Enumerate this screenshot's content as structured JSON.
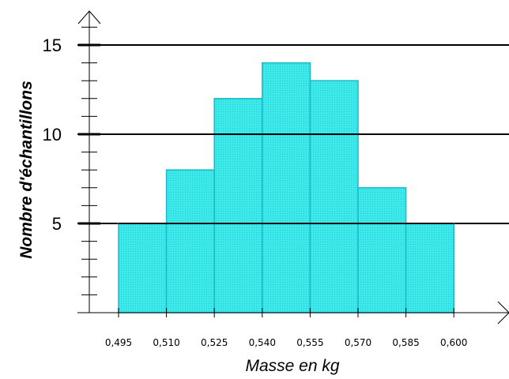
{
  "chart_data": {
    "type": "bar",
    "subtype": "histogram",
    "bin_edges": [
      "0,495",
      "0,510",
      "0,525",
      "0,540",
      "0,555",
      "0,570",
      "0,585",
      "0,600"
    ],
    "bin_edge_values": [
      0.495,
      0.51,
      0.525,
      0.54,
      0.555,
      0.57,
      0.585,
      0.6
    ],
    "values": [
      5,
      8,
      12,
      14,
      13,
      7,
      5
    ],
    "xlabel": "Masse en kg",
    "ylabel": "Nombre d'échantillons",
    "ylim": [
      0,
      16
    ],
    "y_major_ticks": [
      "5",
      "10",
      "15"
    ],
    "y_minor_step": 1,
    "grid": "horizontal lines at major ticks",
    "colors": {
      "bar_fill": "#33e5e5",
      "bar_stroke": "#1ab8c8",
      "axis": "#000000",
      "grid": "#000000"
    }
  }
}
